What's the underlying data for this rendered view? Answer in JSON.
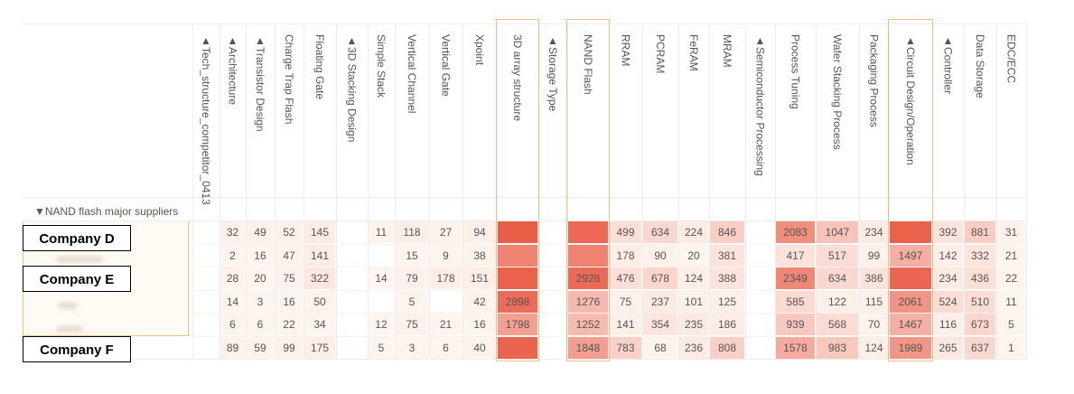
{
  "group_label": "▼NAND flash major suppliers",
  "companies": {
    "d": "Company D",
    "e": "Company E",
    "f": "Company F"
  },
  "colors": {
    "max": "#e8503a",
    "min": "#fff3ee",
    "highlight": "#f0c080"
  },
  "chart_data": {
    "type": "heatmap",
    "columns": [
      "▲Tech_structure_competitor_0413",
      "▲Architecture",
      "▲Transistor Design",
      "Charge Trap Flash",
      "Floating Gate",
      "▲3D Stacking Design",
      "Simple Stack",
      "Vertical Channel",
      "Vertical Gate",
      "Xpoint",
      "3D array structure",
      "▲Storage Type",
      "NAND Flash",
      "RRAM",
      "PCRAM",
      "FeRAM",
      "MRAM",
      "▲Semiconductor Processing",
      "Process Tuning",
      "Wafer Stacking Process",
      "Packaging Process",
      "▲Circuit Design/Operation",
      "▲Controller",
      "Data Storage",
      "EDC/ECC"
    ],
    "highlighted_columns": [
      "3D array structure",
      "NAND Flash",
      "▲Circuit Design/Operation"
    ],
    "rows": [
      [
        "",
        "32",
        "49",
        "52",
        "145",
        "",
        "11",
        "118",
        "27",
        "94",
        "",
        "",
        "",
        "499",
        "634",
        "224",
        "846",
        "",
        "2083",
        "1047",
        "234",
        "",
        "392",
        "881",
        "31"
      ],
      [
        "",
        "2",
        "16",
        "47",
        "141",
        "",
        "",
        "15",
        "9",
        "38",
        "",
        "",
        "",
        "178",
        "90",
        "20",
        "381",
        "",
        "417",
        "517",
        "99",
        "1497",
        "142",
        "332",
        "21"
      ],
      [
        "",
        "28",
        "20",
        "75",
        "322",
        "",
        "14",
        "79",
        "178",
        "151",
        "",
        "",
        "2928",
        "476",
        "678",
        "124",
        "388",
        "",
        "2349",
        "634",
        "386",
        "",
        "234",
        "436",
        "22"
      ],
      [
        "",
        "14",
        "3",
        "16",
        "50",
        "",
        "",
        "5",
        "",
        "42",
        "2898",
        "",
        "1276",
        "75",
        "237",
        "101",
        "125",
        "",
        "585",
        "122",
        "115",
        "2061",
        "524",
        "510",
        "11"
      ],
      [
        "",
        "6",
        "6",
        "22",
        "34",
        "",
        "12",
        "75",
        "21",
        "16",
        "1798",
        "",
        "1252",
        "141",
        "354",
        "235",
        "186",
        "",
        "939",
        "568",
        "70",
        "1467",
        "116",
        "673",
        "5"
      ],
      [
        "",
        "89",
        "59",
        "99",
        "175",
        "",
        "5",
        "3",
        "6",
        "40",
        "",
        "",
        "1848",
        "783",
        "68",
        "236",
        "808",
        "",
        "1578",
        "983",
        "124",
        "1989",
        "265",
        "637",
        "1"
      ]
    ],
    "intensity": [
      [
        0,
        0.03,
        0.03,
        0.03,
        0.06,
        0,
        0.02,
        0.05,
        0.02,
        0.04,
        0.92,
        0,
        0.85,
        0.14,
        0.18,
        0.07,
        0.24,
        0,
        0.62,
        0.3,
        0.07,
        0.9,
        0.11,
        0.25,
        0.02
      ],
      [
        0,
        0.01,
        0.01,
        0.02,
        0.06,
        0,
        0,
        0.01,
        0.01,
        0.02,
        0.7,
        0,
        0.7,
        0.05,
        0.03,
        0.01,
        0.11,
        0,
        0.12,
        0.15,
        0.03,
        0.43,
        0.04,
        0.1,
        0.01
      ],
      [
        0,
        0.02,
        0.01,
        0.03,
        0.09,
        0,
        0.01,
        0.03,
        0.05,
        0.05,
        0.9,
        0,
        0.84,
        0.14,
        0.19,
        0.04,
        0.11,
        0,
        0.67,
        0.18,
        0.11,
        0.86,
        0.07,
        0.13,
        0.01
      ],
      [
        0,
        0.01,
        0.01,
        0.01,
        0.02,
        0,
        0,
        0.01,
        0,
        0.02,
        0.83,
        0,
        0.37,
        0.03,
        0.07,
        0.03,
        0.04,
        0,
        0.17,
        0.04,
        0.04,
        0.59,
        0.15,
        0.15,
        0.01
      ],
      [
        0,
        0.01,
        0.01,
        0.01,
        0.01,
        0,
        0.01,
        0.03,
        0.01,
        0.01,
        0.52,
        0,
        0.36,
        0.04,
        0.1,
        0.07,
        0.06,
        0,
        0.27,
        0.16,
        0.02,
        0.42,
        0.04,
        0.19,
        0.01
      ],
      [
        0,
        0.03,
        0.02,
        0.03,
        0.05,
        0,
        0.01,
        0.01,
        0.01,
        0.02,
        0.88,
        0,
        0.53,
        0.22,
        0.02,
        0.07,
        0.23,
        0,
        0.45,
        0.28,
        0.04,
        0.57,
        0.08,
        0.18,
        0.01
      ]
    ]
  }
}
